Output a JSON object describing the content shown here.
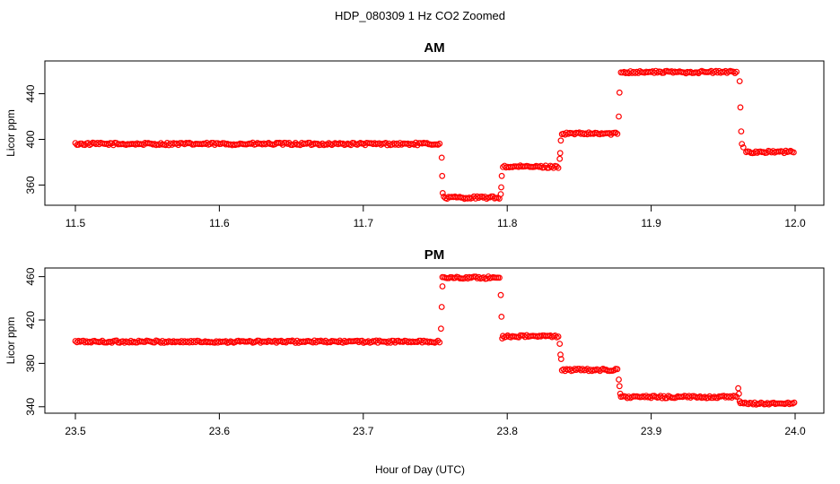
{
  "figure": {
    "title": "HDP_080309  1 Hz CO2 Zoomed",
    "xlabel": "Hour of Day (UTC)",
    "point_color": "#ff0000"
  },
  "chart_data": [
    {
      "type": "scatter",
      "title": "AM",
      "ylabel": "Licor ppm",
      "xlim": [
        11.5,
        12.0
      ],
      "ylim": [
        347,
        464
      ],
      "xticks": [
        11.5,
        11.6,
        11.7,
        11.8,
        11.9,
        12.0
      ],
      "xtick_labels": [
        "11.5",
        "11.6",
        "11.7",
        "11.8",
        "11.9",
        "12.0"
      ],
      "yticks": [
        360,
        400,
        440
      ],
      "ytick_labels": [
        "360",
        "400",
        "440"
      ],
      "grid": false,
      "segments": [
        {
          "x0": 11.5,
          "x1": 11.753,
          "y": 396
        },
        {
          "x0": 11.756,
          "x1": 11.795,
          "y": 349
        },
        {
          "x0": 11.797,
          "x1": 11.836,
          "y": 376
        },
        {
          "x0": 11.838,
          "x1": 11.877,
          "y": 405
        },
        {
          "x0": 11.879,
          "x1": 11.96,
          "y": 459
        },
        {
          "x0": 11.966,
          "x1": 12.0,
          "y": 389
        }
      ],
      "transitions": [
        {
          "x": 11.7545,
          "y": 384
        },
        {
          "x": 11.7548,
          "y": 368
        },
        {
          "x": 11.7552,
          "y": 353
        },
        {
          "x": 11.7955,
          "y": 352
        },
        {
          "x": 11.7958,
          "y": 358
        },
        {
          "x": 11.7962,
          "y": 368
        },
        {
          "x": 11.8365,
          "y": 383
        },
        {
          "x": 11.8368,
          "y": 388
        },
        {
          "x": 11.8372,
          "y": 399
        },
        {
          "x": 11.8775,
          "y": 420
        },
        {
          "x": 11.878,
          "y": 441
        },
        {
          "x": 11.9615,
          "y": 451
        },
        {
          "x": 11.962,
          "y": 428
        },
        {
          "x": 11.9625,
          "y": 407
        },
        {
          "x": 11.963,
          "y": 396
        },
        {
          "x": 11.964,
          "y": 393
        }
      ]
    },
    {
      "type": "scatter",
      "title": "PM",
      "ylabel": "Licor ppm",
      "xlim": [
        23.5,
        24.0
      ],
      "ylim": [
        339,
        463
      ],
      "xticks": [
        23.5,
        23.6,
        23.7,
        23.8,
        23.9,
        24.0
      ],
      "xtick_labels": [
        "23.5",
        "23.6",
        "23.7",
        "23.8",
        "23.9",
        "24.0"
      ],
      "yticks": [
        340,
        380,
        420,
        460
      ],
      "ytick_labels": [
        "340",
        "380",
        "420",
        "460"
      ],
      "grid": false,
      "segments": [
        {
          "x0": 23.5,
          "x1": 23.753,
          "y": 400
        },
        {
          "x0": 23.755,
          "x1": 23.795,
          "y": 459
        },
        {
          "x0": 23.797,
          "x1": 23.836,
          "y": 405
        },
        {
          "x0": 23.838,
          "x1": 23.877,
          "y": 374
        },
        {
          "x0": 23.879,
          "x1": 23.96,
          "y": 349
        },
        {
          "x0": 23.962,
          "x1": 24.0,
          "y": 343
        }
      ],
      "transitions": [
        {
          "x": 23.754,
          "y": 412
        },
        {
          "x": 23.7545,
          "y": 432
        },
        {
          "x": 23.755,
          "y": 451
        },
        {
          "x": 23.7955,
          "y": 443
        },
        {
          "x": 23.796,
          "y": 423
        },
        {
          "x": 23.7965,
          "y": 403
        },
        {
          "x": 23.8365,
          "y": 398
        },
        {
          "x": 23.837,
          "y": 388
        },
        {
          "x": 23.8375,
          "y": 384
        },
        {
          "x": 23.8775,
          "y": 365
        },
        {
          "x": 23.878,
          "y": 359
        },
        {
          "x": 23.8785,
          "y": 352
        },
        {
          "x": 23.9605,
          "y": 357
        },
        {
          "x": 23.961,
          "y": 352
        },
        {
          "x": 23.9615,
          "y": 345
        }
      ]
    }
  ]
}
